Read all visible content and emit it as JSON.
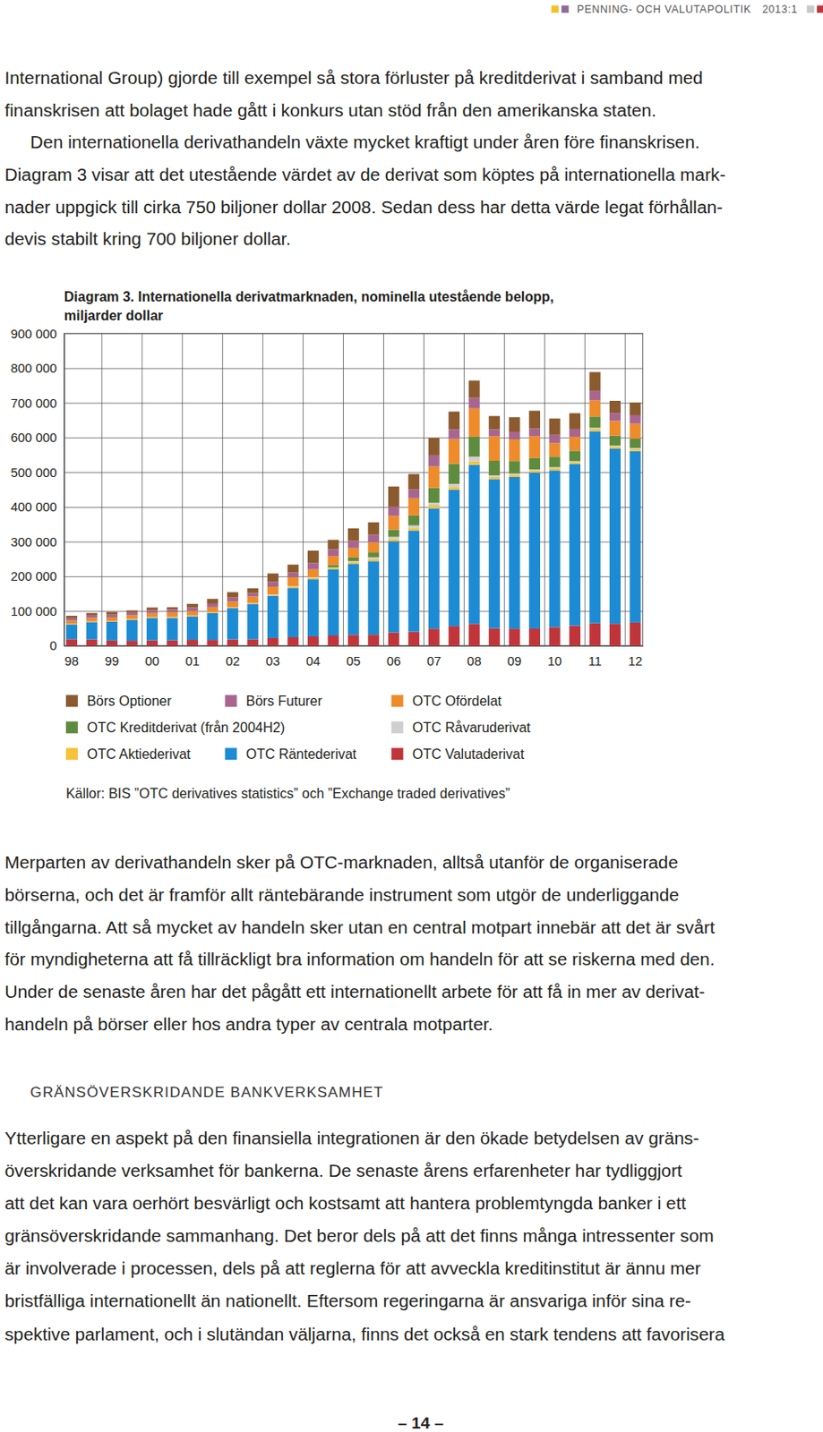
{
  "header": {
    "title": "PENNING- OCH VALUTAPOLITIK",
    "issue": "2013:1"
  },
  "body_top": [
    [
      "International Group) gjorde till exempel så stora förluster på kreditderivat i samband med",
      "finanskrisen att bolaget hade gått i konkurs utan stöd från den amerikanska staten."
    ],
    [
      "Den internationella derivathandeln växte mycket kraftigt under åren före finanskrisen."
    ],
    [
      "Diagram 3 visar att det utestående värdet av de derivat som köptes på internationella mark-",
      "nader uppgick till cirka 750 biljoner dollar 2008. Sedan dess har detta värde legat förhållan-",
      "devis stabilt kring 700 biljoner dollar."
    ]
  ],
  "chart_data": {
    "type": "bar",
    "stacked": true,
    "grid": true,
    "legend": "bottom",
    "title": "Diagram 3. Internationella derivatmarknaden, nominella utestående belopp, miljarder dollar",
    "source": "Källor: BIS ”OTC derivatives statistics” och ”Exchange traded derivatives”",
    "categories": [
      "98",
      null,
      "99",
      null,
      "00",
      null,
      "01",
      null,
      "02",
      null,
      "03",
      null,
      "04",
      null,
      "05",
      null,
      "06",
      null,
      "07",
      null,
      "08",
      null,
      "09",
      null,
      "10",
      null,
      "11",
      null,
      "12"
    ],
    "ylim": [
      0,
      900000
    ],
    "yticks": [
      0,
      {
        "value": 100000,
        "label": "100 000"
      },
      {
        "value": 200000,
        "label": "200 000"
      },
      {
        "value": 300000,
        "label": "300 000"
      },
      {
        "value": 400000,
        "label": "400 000"
      },
      {
        "value": 500000,
        "label": "500 000"
      },
      {
        "value": 600000,
        "label": "600 000"
      },
      {
        "value": 700000,
        "label": "700 000"
      },
      {
        "value": 800000,
        "label": "800 000"
      },
      {
        "value": 900000,
        "label": "900 000"
      }
    ],
    "series": [
      {
        "name": "Börs Optioner",
        "color": "#8b5a2e",
        "values": [
          6900,
          5500,
          7800,
          5300,
          7300,
          6000,
          10700,
          14000,
          15400,
          13700,
          24400,
          22600,
          35700,
          27600,
          36200,
          36100,
          58600,
          44700,
          50900,
          51000,
          50000,
          38400,
          41500,
          51400,
          47200,
          45600,
          55000,
          35000,
          37000
        ]
      },
      {
        "name": "Börs Futurer",
        "color": "#a8658f",
        "values": [
          7000,
          8400,
          8200,
          8300,
          8600,
          8300,
          9900,
          9700,
          11200,
          10000,
          13800,
          13700,
          18200,
          18800,
          20300,
          21600,
          25700,
          25000,
          31600,
          28100,
          30200,
          19600,
          22300,
          21700,
          23400,
          22300,
          26600,
          22800,
          24000
        ]
      },
      {
        "name": "OTC Ofördelat",
        "color": "#ee8b2b",
        "values": [
          9300,
          10400,
          10500,
          11400,
          11600,
          13600,
          12900,
          14400,
          16500,
          18300,
          22200,
          25500,
          22600,
          26600,
          27400,
          29200,
          40000,
          49700,
          61700,
          71200,
          81700,
          71000,
          62200,
          63300,
          39500,
          40500,
          46500,
          42600,
          43000
        ]
      },
      {
        "name": "OTC Kreditderivat (från 2004H2)",
        "color": "#5e8c3e",
        "values": [
          null,
          null,
          null,
          null,
          null,
          null,
          null,
          null,
          null,
          null,
          null,
          null,
          null,
          6400,
          10200,
          13900,
          20400,
          28700,
          42600,
          57900,
          57400,
          41900,
          36000,
          32700,
          30300,
          29900,
          32400,
          28600,
          26900
        ]
      },
      {
        "name": "OTC Råvaruderivat",
        "color": "#cfcfcf",
        "values": [
          500,
          400,
          400,
          500,
          600,
          700,
          600,
          600,
          800,
          900,
          1000,
          1400,
          1300,
          1400,
          2900,
          5400,
          6400,
          7100,
          7600,
          8500,
          13200,
          4400,
          3700,
          2900,
          2900,
          2900,
          3200,
          3100,
          3000
        ]
      },
      {
        "name": "OTC Aktiederivat",
        "color": "#f6c23a",
        "values": [
          1300,
          1500,
          1500,
          1800,
          1600,
          1900,
          1900,
          1900,
          2200,
          2300,
          2800,
          3800,
          4500,
          4400,
          5100,
          5800,
          6800,
          7500,
          8600,
          8500,
          10200,
          6500,
          6600,
          5900,
          6300,
          5600,
          6800,
          6000,
          6300
        ]
      },
      {
        "name": "OTC Räntederivat",
        "color": "#1c8bd4",
        "values": [
          42400,
          50000,
          54100,
          60100,
          64700,
          64400,
          67500,
          77600,
          90000,
          101700,
          121800,
          142000,
          164600,
          190500,
          204800,
          212000,
          262500,
          291600,
          347300,
          393100,
          458300,
          430000,
          437200,
          449900,
          451800,
          465300,
          553200,
          504100,
          494000
        ]
      },
      {
        "name": "OTC Valutaderivat",
        "color": "#c0353a",
        "values": [
          18700,
          18000,
          14900,
          14300,
          15500,
          15700,
          16900,
          16700,
          18100,
          18400,
          22100,
          24500,
          27000,
          29300,
          31100,
          31400,
          38100,
          40300,
          48600,
          56200,
          63000,
          50000,
          48700,
          49200,
          53200,
          57800,
          64700,
          63300,
          66600
        ]
      }
    ]
  },
  "body_middle": [
    [
      "Merparten av derivathandeln sker på OTC-marknaden, alltså utanför de organiserade",
      "börserna, och det är framför allt räntebärande instrument som utgör de underliggande",
      "tillgångarna. Att så mycket av handeln sker utan en central motpart innebär att det är svårt",
      "för myndigheterna att få tillräckligt bra information om handeln för att se riskerna med den.",
      "Under de senaste åren har det pågått ett internationellt arbete för att få in mer av derivat-",
      "handeln på börser eller hos andra typer av centrala motparter."
    ]
  ],
  "section_heading": "GRÄNSÖVERSKRIDANDE BANKVERKSAMHET",
  "body_bottom": [
    [
      "Ytterligare en aspekt på den finansiella integrationen är den ökade betydelsen av gräns-",
      "överskridande verksamhet för bankerna. De senaste årens erfarenheter har tydliggjort",
      "att det kan vara oerhört besvärligt och kostsamt att hantera problemtyngda banker i ett",
      "gränsöverskridande sammanhang. Det beror dels på att det finns många intressenter som",
      "är involverade i processen, dels på att reglerna för att avveckla kreditinstitut är ännu mer",
      "bristfälliga internationellt än nationellt. Eftersom regeringarna är ansvariga inför sina re-",
      "spektive parlament, och i slutändan väljarna, finns det också en stark tendens att favorisera"
    ]
  ],
  "page_number": "– 14 –"
}
